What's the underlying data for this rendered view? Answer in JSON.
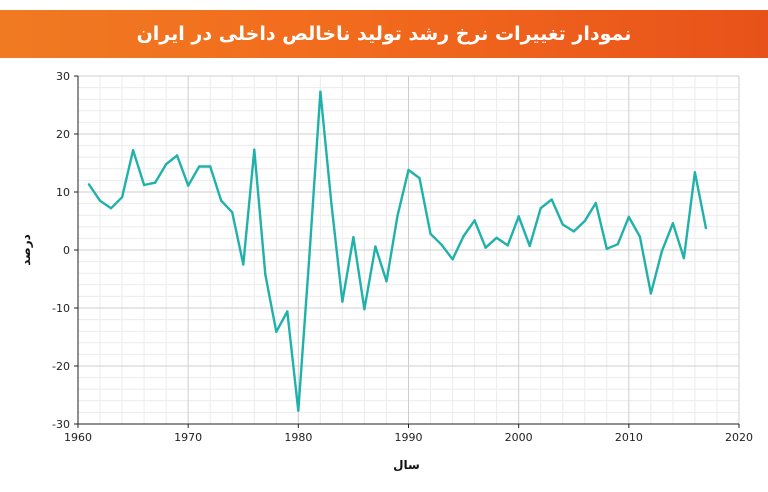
{
  "title": "نمودار تغییرات نرخ رشد تولید ناخالص داخلی در ایران",
  "chart_data": {
    "type": "line",
    "xlabel": "سال",
    "ylabel": "درصد",
    "xlim": [
      1960,
      2020
    ],
    "ylim": [
      -30,
      30
    ],
    "xticks": [
      1960,
      1970,
      1980,
      1990,
      2000,
      2010,
      2020
    ],
    "yticks": [
      -30,
      -20,
      -10,
      0,
      10,
      20,
      30
    ],
    "grid": true,
    "line_color": "#20b2aa",
    "series": [
      {
        "x": [
          1961,
          1962,
          1963,
          1964,
          1965,
          1966,
          1967,
          1968,
          1969,
          1970,
          1971,
          1972,
          1973,
          1974,
          1975,
          1976,
          1977,
          1978,
          1979,
          1980,
          1981,
          1982,
          1983,
          1984,
          1985,
          1986,
          1987,
          1988,
          1989,
          1990,
          1991,
          1992,
          1993,
          1994,
          1995,
          1996,
          1997,
          1998,
          1999,
          2000,
          2001,
          2002,
          2003,
          2004,
          2005,
          2006,
          2007,
          2008,
          2009,
          2010,
          2011,
          2012,
          2013,
          2014,
          2015,
          2016,
          2017
        ],
        "values": [
          11.3,
          8.5,
          7.2,
          9.1,
          17.2,
          11.2,
          11.6,
          14.8,
          16.3,
          11.1,
          14.4,
          14.4,
          8.5,
          6.5,
          -2.5,
          17.3,
          -4.2,
          -14.1,
          -10.6,
          -27.7,
          -1,
          27.3,
          8,
          -8.9,
          2.2,
          -10.2,
          0.6,
          -5.4,
          5.9,
          13.8,
          12.4,
          2.8,
          0.9,
          -1.6,
          2.4,
          5.1,
          0.4,
          2.1,
          0.8,
          5.8,
          0.7,
          7.2,
          8.7,
          4.4,
          3.2,
          5,
          8.1,
          0.2,
          1,
          5.7,
          2.3,
          -7.5,
          -0.2,
          4.6,
          -1.4,
          13.4,
          3.8
        ]
      }
    ]
  }
}
